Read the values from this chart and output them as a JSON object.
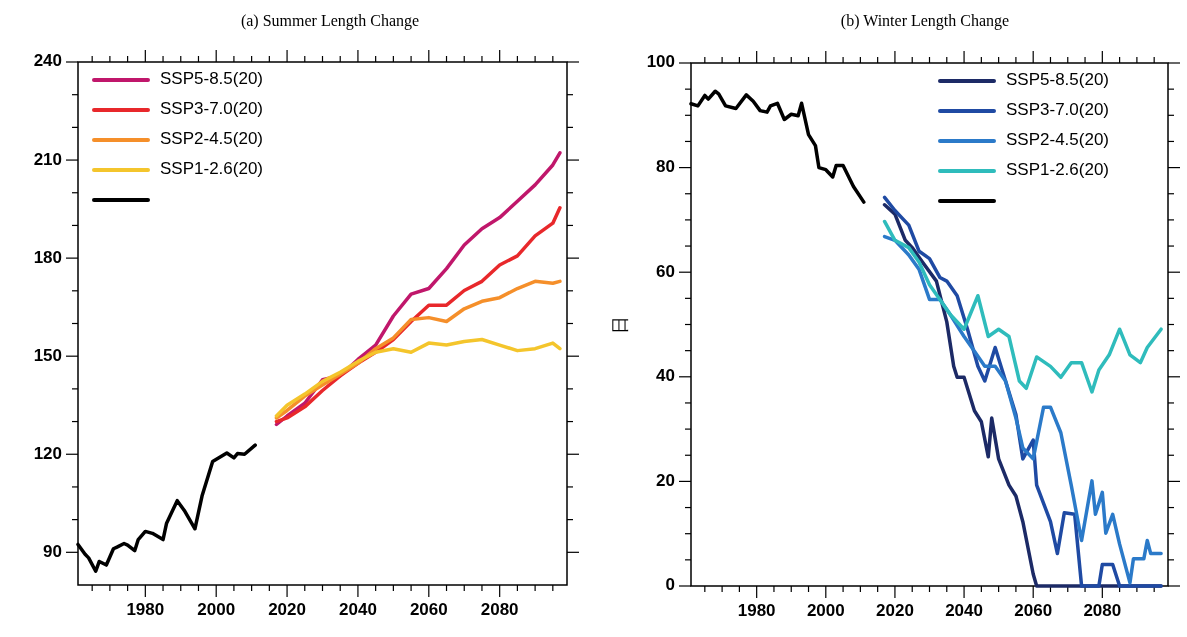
{
  "chart_data": [
    {
      "type": "line",
      "title": "(a) Summer Length Change",
      "xlim": [
        1961,
        2099
      ],
      "ylim": [
        80,
        240
      ],
      "xticks": [
        {
          "value": 1965,
          "label": null
        },
        {
          "value": 1970,
          "label": null
        },
        {
          "value": 1975,
          "label": null
        },
        1980,
        {
          "value": 1985,
          "label": null
        },
        {
          "value": 1990,
          "label": null
        },
        {
          "value": 1995,
          "label": null
        },
        2000,
        {
          "value": 2005,
          "label": null
        },
        {
          "value": 2010,
          "label": null
        },
        {
          "value": 2015,
          "label": null
        },
        2020,
        {
          "value": 2025,
          "label": null
        },
        {
          "value": 2030,
          "label": null
        },
        {
          "value": 2035,
          "label": null
        },
        2040,
        {
          "value": 2045,
          "label": null
        },
        {
          "value": 2050,
          "label": null
        },
        {
          "value": 2055,
          "label": null
        },
        2060,
        {
          "value": 2065,
          "label": null
        },
        {
          "value": 2070,
          "label": null
        },
        {
          "value": 2075,
          "label": null
        },
        2080,
        {
          "value": 2085,
          "label": null
        },
        {
          "value": 2090,
          "label": null
        },
        {
          "value": 2095,
          "label": null
        }
      ],
      "yticks": [
        90,
        {
          "value": 100,
          "label": null
        },
        {
          "value": 110,
          "label": null
        },
        120,
        {
          "value": 130,
          "label": null
        },
        {
          "value": 140,
          "label": null
        },
        150,
        {
          "value": 160,
          "label": null
        },
        {
          "value": 170,
          "label": null
        },
        180,
        {
          "value": 190,
          "label": null
        },
        {
          "value": 200,
          "label": null
        },
        210,
        {
          "value": 220,
          "label": null
        },
        {
          "value": 230,
          "label": null
        },
        240
      ],
      "legend": "top left",
      "series": [
        {
          "name": "SSP5-8.5(20)",
          "color": "#c0176b",
          "x": [
            2017,
            2020,
            2025,
            2030,
            2035,
            2040,
            2045,
            2050,
            2055,
            2060,
            2065,
            2070,
            2075,
            2080,
            2085,
            2090,
            2095,
            2097
          ],
          "values": [
            129.1,
            131.7,
            135.6,
            142.8,
            144.0,
            149.0,
            153.4,
            162.3,
            169.0,
            170.7,
            176.8,
            184.0,
            189.0,
            192.4,
            197.4,
            202.4,
            208.5,
            212.2
          ]
        },
        {
          "name": "SSP3-7.0(20)",
          "color": "#e8282b",
          "x": [
            2017,
            2020,
            2025,
            2030,
            2035,
            2040,
            2045,
            2050,
            2055,
            2060,
            2065,
            2070,
            2075,
            2080,
            2085,
            2090,
            2095,
            2097
          ],
          "values": [
            130.0,
            131.1,
            134.5,
            139.5,
            144.0,
            147.8,
            151.2,
            155.1,
            160.6,
            165.6,
            165.6,
            170.1,
            172.9,
            177.9,
            180.7,
            186.8,
            190.7,
            195.4
          ]
        },
        {
          "name": "SSP2-4.5(20)",
          "color": "#f58f2a",
          "x": [
            2017,
            2020,
            2025,
            2030,
            2035,
            2040,
            2045,
            2050,
            2055,
            2060,
            2065,
            2070,
            2075,
            2080,
            2085,
            2090,
            2095,
            2097
          ],
          "values": [
            131.1,
            133.4,
            137.8,
            141.2,
            144.5,
            147.8,
            152.3,
            155.6,
            161.2,
            161.8,
            160.6,
            164.5,
            166.8,
            167.9,
            170.7,
            172.9,
            172.3,
            172.9
          ]
        },
        {
          "name": "SSP1-2.6(20)",
          "color": "#f4c52c",
          "x": [
            2017,
            2020,
            2025,
            2030,
            2035,
            2040,
            2045,
            2050,
            2055,
            2060,
            2065,
            2070,
            2075,
            2080,
            2085,
            2090,
            2095,
            2097
          ],
          "values": [
            131.7,
            135.0,
            138.4,
            142.3,
            145.1,
            148.4,
            151.2,
            152.3,
            151.2,
            154.0,
            153.4,
            154.5,
            155.1,
            153.4,
            151.7,
            152.3,
            154.0,
            152.3
          ]
        },
        {
          "color": "#000000",
          "x": [
            1961,
            1963,
            1964,
            1966,
            1967,
            1969,
            1971,
            1972,
            1974,
            1975,
            1977,
            1978,
            1980,
            1982,
            1985,
            1986,
            1989,
            1991,
            1994,
            1996,
            1999,
            2001,
            2003,
            2005,
            2006,
            2008,
            2011
          ],
          "values": [
            92.4,
            89.4,
            88.3,
            84.2,
            87.2,
            86.1,
            91.1,
            91.6,
            92.7,
            92.2,
            90.5,
            93.9,
            96.4,
            95.8,
            93.9,
            98.9,
            105.8,
            102.8,
            97.2,
            107.2,
            117.8,
            119.1,
            120.4,
            118.9,
            120.2,
            120.0,
            122.8
          ]
        }
      ]
    },
    {
      "type": "line",
      "title": "(b) Winter Length Change",
      "ylabel": "日",
      "xlim": [
        1961,
        2099
      ],
      "ylim": [
        0,
        100
      ],
      "xticks": [
        {
          "value": 1965,
          "label": null
        },
        {
          "value": 1970,
          "label": null
        },
        {
          "value": 1975,
          "label": null
        },
        1980,
        {
          "value": 1985,
          "label": null
        },
        {
          "value": 1990,
          "label": null
        },
        {
          "value": 1995,
          "label": null
        },
        2000,
        {
          "value": 2005,
          "label": null
        },
        {
          "value": 2010,
          "label": null
        },
        {
          "value": 2015,
          "label": null
        },
        2020,
        {
          "value": 2025,
          "label": null
        },
        {
          "value": 2030,
          "label": null
        },
        {
          "value": 2035,
          "label": null
        },
        2040,
        {
          "value": 2045,
          "label": null
        },
        {
          "value": 2050,
          "label": null
        },
        {
          "value": 2055,
          "label": null
        },
        2060,
        {
          "value": 2065,
          "label": null
        },
        {
          "value": 2070,
          "label": null
        },
        {
          "value": 2075,
          "label": null
        },
        2080,
        {
          "value": 2085,
          "label": null
        },
        {
          "value": 2090,
          "label": null
        },
        {
          "value": 2095,
          "label": null
        }
      ],
      "yticks": [
        0,
        {
          "value": 5,
          "label": null
        },
        {
          "value": 10,
          "label": null
        },
        {
          "value": 15,
          "label": null
        },
        20,
        {
          "value": 25,
          "label": null
        },
        {
          "value": 30,
          "label": null
        },
        {
          "value": 35,
          "label": null
        },
        40,
        {
          "value": 45,
          "label": null
        },
        {
          "value": 50,
          "label": null
        },
        {
          "value": 55,
          "label": null
        },
        60,
        {
          "value": 65,
          "label": null
        },
        {
          "value": 70,
          "label": null
        },
        {
          "value": 75,
          "label": null
        },
        80,
        {
          "value": 85,
          "label": null
        },
        {
          "value": 90,
          "label": null
        },
        {
          "value": 95,
          "label": null
        },
        100
      ],
      "legend": "top right",
      "series": [
        {
          "name": "SSP5-8.5(20)",
          "color": "#1c2a66",
          "x": [
            2017,
            2020,
            2023,
            2025,
            2028,
            2032,
            2035,
            2037,
            2038,
            2040,
            2043,
            2045,
            2047,
            2048,
            2050,
            2053,
            2055,
            2057,
            2060,
            2061,
            2097
          ],
          "values": [
            72.9,
            71.1,
            66.1,
            64.7,
            61.9,
            58.3,
            50.5,
            42.0,
            39.9,
            39.9,
            33.5,
            31.4,
            24.7,
            32.1,
            24.3,
            19.3,
            17.2,
            12.3,
            2.3,
            0,
            0
          ]
        },
        {
          "name": "SSP3-7.0(20)",
          "color": "#1f4aa3",
          "x": [
            2017,
            2020,
            2024,
            2027,
            2030,
            2033,
            2035,
            2038,
            2041,
            2044,
            2046,
            2049,
            2052,
            2055,
            2057,
            2060,
            2061,
            2065,
            2067,
            2069,
            2072,
            2074,
            2079,
            2080,
            2083,
            2085,
            2097
          ],
          "values": [
            74.3,
            71.8,
            69.0,
            64.0,
            62.6,
            59.0,
            58.3,
            55.5,
            49.1,
            42.0,
            39.2,
            45.6,
            39.2,
            32.8,
            24.3,
            27.9,
            19.3,
            12.3,
            6.2,
            14.0,
            13.7,
            0,
            0,
            4.1,
            4.1,
            0,
            0
          ]
        },
        {
          "name": "SSP2-4.5(20)",
          "color": "#2b7ac9",
          "x": [
            2017,
            2020,
            2024,
            2027,
            2030,
            2033,
            2036,
            2040,
            2043,
            2046,
            2049,
            2052,
            2055,
            2057,
            2060,
            2063,
            2065,
            2068,
            2071,
            2074,
            2077,
            2078,
            2080,
            2081,
            2083,
            2085,
            2088,
            2089,
            2092,
            2093,
            2094,
            2097
          ],
          "values": [
            66.8,
            66.1,
            63.3,
            60.5,
            54.8,
            54.8,
            51.9,
            47.7,
            44.9,
            42.0,
            42.0,
            39.2,
            32.1,
            26.4,
            24.3,
            34.2,
            34.2,
            29.3,
            19.3,
            8.7,
            20.1,
            13.7,
            17.9,
            10.1,
            13.7,
            8.0,
            0.6,
            5.2,
            5.2,
            8.7,
            6.2,
            6.2
          ]
        },
        {
          "name": "SSP1-2.6(20)",
          "color": "#2fbcbc",
          "x": [
            2017,
            2020,
            2024,
            2027,
            2030,
            2033,
            2036,
            2040,
            2044,
            2047,
            2050,
            2053,
            2056,
            2058,
            2061,
            2065,
            2068,
            2071,
            2074,
            2077,
            2079,
            2082,
            2085,
            2088,
            2091,
            2093,
            2097
          ],
          "values": [
            69.7,
            66.1,
            64.7,
            61.9,
            57.6,
            54.8,
            51.9,
            49.1,
            55.5,
            47.7,
            49.1,
            47.7,
            39.2,
            37.8,
            43.8,
            42.0,
            39.9,
            42.7,
            42.7,
            37.1,
            41.3,
            44.2,
            49.1,
            44.2,
            42.7,
            45.6,
            49.1
          ]
        },
        {
          "color": "#000000",
          "x": [
            1961,
            1963,
            1965,
            1966,
            1968,
            1969,
            1971,
            1974,
            1977,
            1979,
            1981,
            1983,
            1984,
            1986,
            1988,
            1990,
            1992,
            1993,
            1995,
            1997,
            1998,
            2000,
            2002,
            2003,
            2005,
            2008,
            2011
          ],
          "values": [
            92.2,
            91.8,
            93.8,
            93.1,
            94.6,
            94.1,
            91.8,
            91.3,
            93.9,
            92.7,
            90.9,
            90.6,
            91.8,
            92.3,
            89.2,
            90.2,
            89.9,
            92.3,
            86.3,
            84.2,
            80.0,
            79.6,
            78.2,
            80.4,
            80.4,
            76.4,
            73.4
          ]
        }
      ]
    }
  ]
}
